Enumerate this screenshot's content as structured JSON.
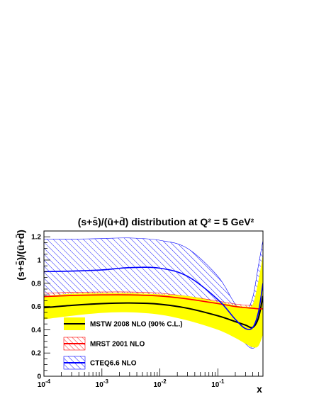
{
  "chart_data": {
    "type": "line",
    "title": "(s+s̄)/(ū+d̄) distribution at Q² = 5 GeV²",
    "xlabel": "x",
    "ylabel": "(s+s̄)/(ū+d̄)",
    "xscale": "log",
    "xlim": [
      0.0001,
      0.6
    ],
    "ylim": [
      0,
      1.25
    ],
    "x_ticks": [
      {
        "value": 0.0001,
        "base": "10",
        "exp": "-4"
      },
      {
        "value": 0.001,
        "base": "10",
        "exp": "-3"
      },
      {
        "value": 0.01,
        "base": "10",
        "exp": "-2"
      },
      {
        "value": 0.1,
        "base": "10",
        "exp": "-1"
      }
    ],
    "y_ticks": [
      "0",
      "0.2",
      "0.4",
      "0.6",
      "0.8",
      "1",
      "1.2"
    ],
    "legend_position": "lower-left",
    "series": [
      {
        "name": "MSTW 2008 NLO (90% C.L.)",
        "color": "#000000",
        "band_color": "#ffff00",
        "band_style": "solid",
        "x": [
          0.0001,
          0.0003,
          0.001,
          0.003,
          0.01,
          0.03,
          0.1,
          0.2,
          0.3,
          0.4,
          0.5,
          0.6
        ],
        "central": [
          0.59,
          0.61,
          0.625,
          0.63,
          0.62,
          0.585,
          0.52,
          0.47,
          0.44,
          0.42,
          0.5,
          0.69
        ],
        "lower": [
          0.49,
          0.52,
          0.545,
          0.55,
          0.53,
          0.48,
          0.4,
          0.33,
          0.28,
          0.25,
          0.26,
          0.36
        ],
        "upper": [
          0.69,
          0.71,
          0.715,
          0.715,
          0.705,
          0.69,
          0.64,
          0.61,
          0.6,
          0.62,
          0.82,
          1.05
        ]
      },
      {
        "name": "MRST 2001 NLO",
        "color": "#ff0000",
        "band_color": "#ff0000",
        "band_style": "hatch",
        "x": [
          0.0001,
          0.0003,
          0.001,
          0.003,
          0.01,
          0.03,
          0.1,
          0.2,
          0.3,
          0.4,
          0.5,
          0.6
        ],
        "central": [
          0.685,
          0.695,
          0.7,
          0.7,
          0.69,
          0.665,
          0.625,
          0.6,
          0.59,
          0.585,
          0.58,
          0.58
        ],
        "lower": [
          0.655,
          0.668,
          0.675,
          0.675,
          0.665,
          0.642,
          0.603,
          0.578,
          0.568,
          0.562,
          0.558,
          0.556
        ],
        "upper": [
          0.715,
          0.722,
          0.725,
          0.725,
          0.715,
          0.688,
          0.647,
          0.622,
          0.612,
          0.608,
          0.602,
          0.604
        ]
      },
      {
        "name": "CTEQ6.6 NLO",
        "color": "#0000ff",
        "band_color": "#0000ff",
        "band_style": "hatch",
        "x": [
          0.0001,
          0.0003,
          0.001,
          0.003,
          0.01,
          0.03,
          0.1,
          0.2,
          0.3,
          0.4,
          0.5,
          0.6
        ],
        "central": [
          0.9,
          0.905,
          0.915,
          0.935,
          0.93,
          0.86,
          0.66,
          0.49,
          0.41,
          0.42,
          0.55,
          0.8
        ],
        "lower": [
          0.6,
          0.62,
          0.64,
          0.65,
          0.635,
          0.58,
          0.48,
          0.38,
          0.28,
          0.24,
          0.3,
          0.45
        ],
        "upper": [
          1.18,
          1.18,
          1.185,
          1.19,
          1.17,
          1.1,
          0.86,
          0.62,
          0.56,
          0.68,
          0.95,
          1.17
        ]
      }
    ]
  }
}
